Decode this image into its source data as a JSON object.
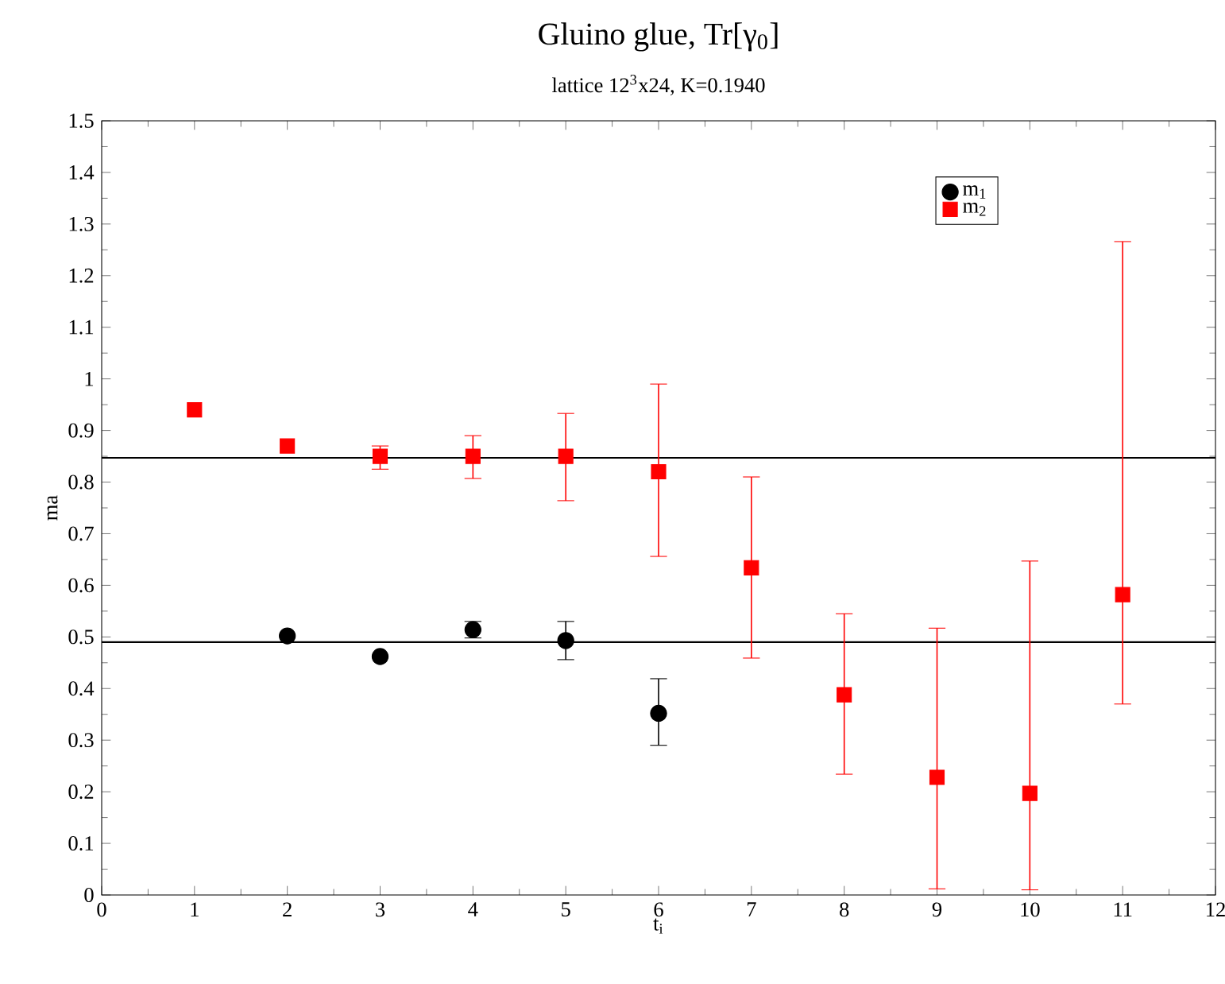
{
  "chart_data": {
    "type": "scatter",
    "title": "Gluino glue, Tr[γ$_{0}$]",
    "subtitle": "lattice 12$^{3}$x24, K=0.1940",
    "xlabel": "t$_{i}$",
    "ylabel": "ma",
    "series": [
      {
        "name": "m$_{1}$",
        "color": "#000000",
        "marker": "circle",
        "x": [
          2,
          3,
          4,
          5,
          6
        ],
        "values": [
          0.502,
          0.462,
          0.514,
          0.493,
          0.352
        ],
        "errors": [
          null,
          null,
          [
            0.498,
            0.53
          ],
          [
            0.456,
            0.53
          ],
          [
            0.29,
            0.419
          ]
        ]
      },
      {
        "name": "m$_{2}$",
        "color": "#ff0000",
        "marker": "square",
        "x": [
          1,
          2,
          3,
          4,
          5,
          6,
          7,
          8,
          9,
          10,
          11
        ],
        "values": [
          0.94,
          0.87,
          0.85,
          0.85,
          0.85,
          0.82,
          0.634,
          0.388,
          0.228,
          0.197,
          0.582
        ],
        "errors": [
          null,
          null,
          [
            0.825,
            0.87
          ],
          [
            0.807,
            0.89
          ],
          [
            0.764,
            0.933
          ],
          [
            0.656,
            0.99
          ],
          [
            0.459,
            0.81
          ],
          [
            0.234,
            0.545
          ],
          [
            0.012,
            0.517
          ],
          [
            0.01,
            0.647
          ],
          [
            0.37,
            1.266
          ]
        ]
      }
    ],
    "xlim": [
      0,
      12
    ],
    "xticks": [
      0,
      1,
      2,
      3,
      4,
      5,
      6,
      7,
      8,
      9,
      10,
      11,
      12
    ],
    "ylim": [
      0,
      1.5
    ],
    "yticks": [
      0,
      0.1,
      0.2,
      0.3,
      0.4,
      0.5,
      0.6,
      0.7,
      0.8,
      0.9,
      1,
      1.1,
      1.2,
      1.3,
      1.4,
      1.5
    ],
    "ref_lines": [
      {
        "axis": "y",
        "value": 0.847,
        "color": "#000000"
      },
      {
        "axis": "y",
        "value": 0.49,
        "color": "#000000"
      }
    ],
    "legend": "top right",
    "grid": false
  }
}
